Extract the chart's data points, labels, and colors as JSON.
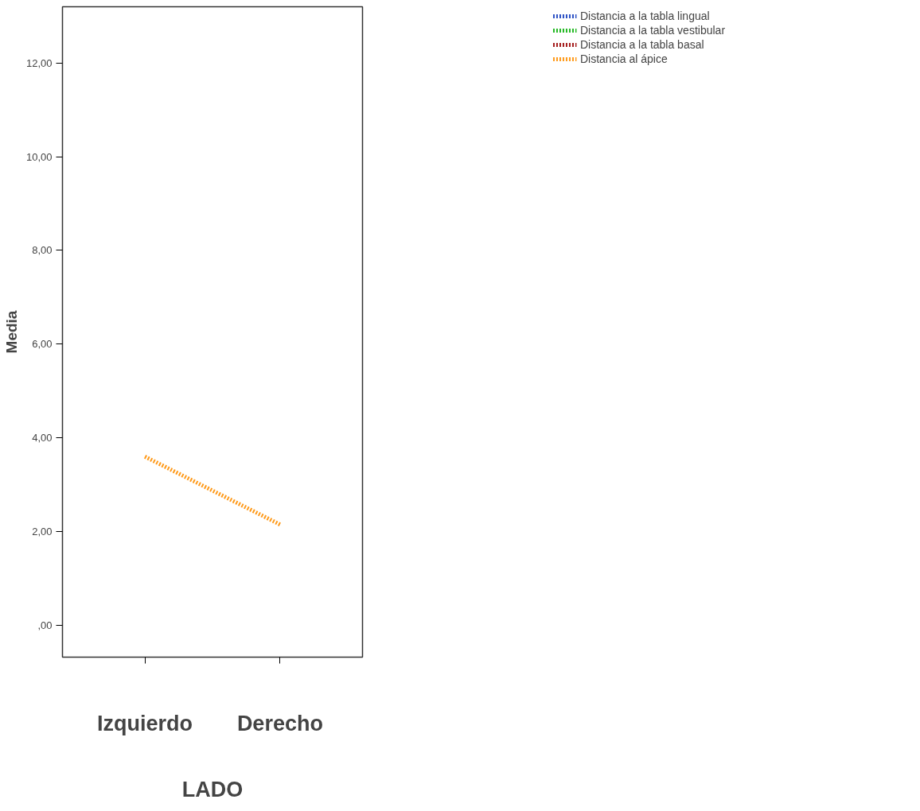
{
  "chart_data": {
    "type": "line",
    "xlabel": "LADO",
    "ylabel": "Media",
    "categories": [
      "Izquierdo",
      "Derecho"
    ],
    "series": [
      {
        "name": "Distancia a la tabla lingual",
        "color": "#2a4fc4",
        "values": [
          null,
          null
        ]
      },
      {
        "name": "Distancia a la tabla vestibular",
        "color": "#22b822",
        "values": [
          null,
          null
        ]
      },
      {
        "name": "Distancia a la tabla basal",
        "color": "#a31a1a",
        "values": [
          null,
          null
        ]
      },
      {
        "name": "Distancia al ápice",
        "color": "#ff9a1a",
        "values": [
          3.6,
          2.15
        ]
      }
    ],
    "ylim": [
      -0.68,
      13.2
    ],
    "yticks": [
      {
        "value": 0,
        "label": ",00"
      },
      {
        "value": 2,
        "label": "2,00"
      },
      {
        "value": 4,
        "label": "4,00"
      },
      {
        "value": 6,
        "label": "6,00"
      },
      {
        "value": 8,
        "label": "8,00"
      },
      {
        "value": 10,
        "label": "10,00"
      },
      {
        "value": 12,
        "label": "12,00"
      }
    ],
    "grid": false,
    "legend": "top right",
    "line_style": "dotted",
    "marker": "none"
  }
}
